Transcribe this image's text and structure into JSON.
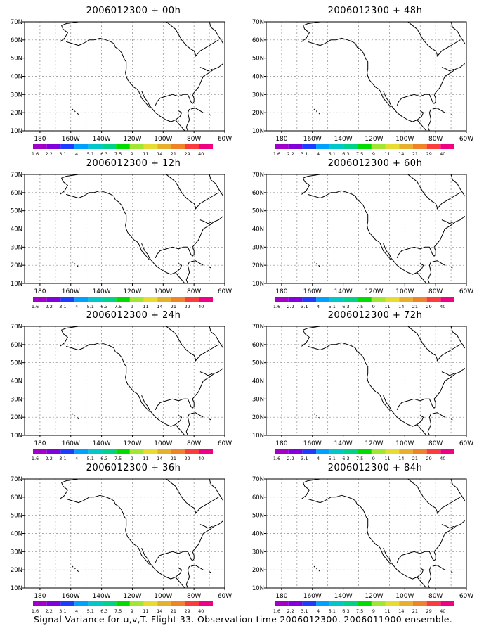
{
  "panels": [
    {
      "id": "p00",
      "title": "2006012300 + 00h"
    },
    {
      "id": "p48",
      "title": "2006012300 + 48h"
    },
    {
      "id": "p12",
      "title": "2006012300 + 12h"
    },
    {
      "id": "p60",
      "title": "2006012300 + 60h"
    },
    {
      "id": "p24",
      "title": "2006012300 + 24h"
    },
    {
      "id": "p72",
      "title": "2006012300 + 72h"
    },
    {
      "id": "p36",
      "title": "2006012300 + 36h"
    },
    {
      "id": "p84",
      "title": "2006012300 + 84h"
    }
  ],
  "map": {
    "lon_range": [
      170,
      300
    ],
    "lat_range": [
      10,
      70
    ],
    "lat_ticks": [
      "10N",
      "20N",
      "30N",
      "40N",
      "50N",
      "60N",
      "70N"
    ],
    "lon_ticks": [
      "180",
      "160W",
      "140W",
      "120W",
      "100W",
      "80W",
      "60W"
    ],
    "grid": true
  },
  "colorbar": {
    "labels": [
      "1.6",
      "2.2",
      "3.1",
      "4",
      "5.1",
      "6.3",
      "7.5",
      "9",
      "11",
      "14",
      "21",
      "29",
      "40"
    ],
    "colors": [
      "#a000c8",
      "#8200dc",
      "#1e3cff",
      "#00a0ff",
      "#00c8c8",
      "#00d28c",
      "#00dc00",
      "#a0e632",
      "#e6dc32",
      "#e6af2d",
      "#f08228",
      "#fa3c3c",
      "#f00082"
    ]
  },
  "footer": "Signal Variance for u,v,T. Flight 33. Observation time 2006012300. 2006011900 ensemble."
}
